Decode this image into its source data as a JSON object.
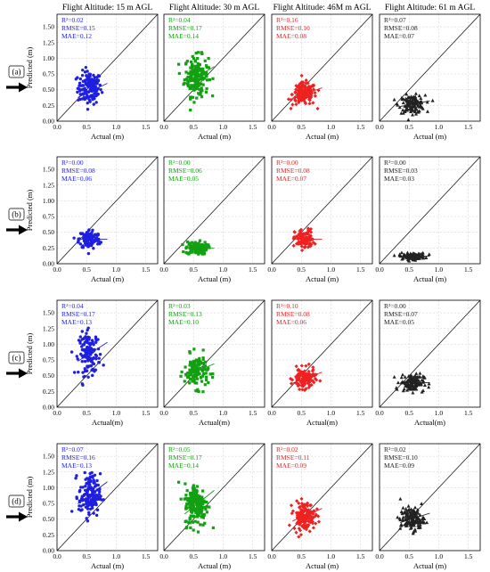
{
  "chart_data": {
    "type": "scatter",
    "column_titles": [
      "Flight Altitude: 15 m AGL",
      "Flight Altitude: 30 m AGL",
      "Flight Altitude: 46M m AGL",
      "Flight Altitude: 61 m AGL"
    ],
    "row_labels": [
      "(a)",
      "(b)",
      "(c)",
      "(d)"
    ],
    "xlabels": [
      "Actual (m)",
      "Actual (m)",
      "Actual(m)",
      "Actual (m)"
    ],
    "ylabel": "Predicted (m)",
    "xlim": [
      0,
      1.7
    ],
    "ylim": [
      0,
      1.7
    ],
    "x_ticks": [
      "0.0",
      "0.5",
      "1.0",
      "1.5"
    ],
    "y_ticks": [
      "0.00",
      "0.25",
      "0.50",
      "0.75",
      "1.00",
      "1.25",
      "1.50"
    ],
    "series_colors": [
      "#1f1fe0",
      "#13a013",
      "#ee2222",
      "#222222"
    ],
    "markers": [
      "circle",
      "square",
      "diamond",
      "triangle"
    ],
    "panels": [
      [
        {
          "stats": [
            "R²=0.02",
            "RMSE=0.15",
            "MAE=0.12"
          ],
          "center": [
            0.55,
            0.53
          ],
          "spread": [
            0.1,
            0.13
          ],
          "n": 140,
          "fit": [
            0.45,
            0.22
          ]
        },
        {
          "stats": [
            "R²=0.04",
            "RMSE=0.17",
            "MAE=0.14"
          ],
          "center": [
            0.55,
            0.72
          ],
          "spread": [
            0.1,
            0.16
          ],
          "n": 170,
          "fit": [
            0.55,
            0.4
          ]
        },
        {
          "stats": [
            "R²=0.16",
            "RMSE=0.10",
            "MAE=0.08"
          ],
          "center": [
            0.55,
            0.43
          ],
          "spread": [
            0.1,
            0.09
          ],
          "n": 150,
          "fit": [
            0.33,
            0.25
          ]
        },
        {
          "stats": [
            "R²=0.07",
            "RMSE=0.08",
            "MAE=0.07"
          ],
          "center": [
            0.55,
            0.27
          ],
          "spread": [
            0.11,
            0.07
          ],
          "n": 130,
          "fit": [
            0.18,
            0.17
          ]
        }
      ],
      [
        {
          "stats": [
            "R²=0.00",
            "RMSE=0.08",
            "MAE=0.06"
          ],
          "center": [
            0.55,
            0.39
          ],
          "spread": [
            0.09,
            0.08
          ],
          "n": 110,
          "fit": [
            0.0,
            0.39
          ]
        },
        {
          "stats": [
            "R²=0.00",
            "RMSE=0.06",
            "MAE=0.05"
          ],
          "center": [
            0.55,
            0.25
          ],
          "spread": [
            0.09,
            0.05
          ],
          "n": 110,
          "fit": [
            0.0,
            0.25
          ]
        },
        {
          "stats": [
            "R²=0.00",
            "RMSE=0.08",
            "MAE=0.07"
          ],
          "center": [
            0.55,
            0.39
          ],
          "spread": [
            0.08,
            0.08
          ],
          "n": 110,
          "fit": [
            0.0,
            0.39
          ]
        },
        {
          "stats": [
            "R²=0.00",
            "RMSE=0.03",
            "MAE=0.03"
          ],
          "center": [
            0.55,
            0.12
          ],
          "spread": [
            0.11,
            0.025
          ],
          "n": 110,
          "fit": [
            0.0,
            0.12
          ]
        }
      ],
      [
        {
          "stats": [
            "R²=0.04",
            "RMSE=0.17",
            "MAE=0.13"
          ],
          "center": [
            0.55,
            0.85
          ],
          "spread": [
            0.09,
            0.17
          ],
          "n": 130,
          "fit": [
            0.6,
            0.52
          ]
        },
        {
          "stats": [
            "R²=0.03",
            "RMSE=0.13",
            "MAE=0.10"
          ],
          "center": [
            0.55,
            0.57
          ],
          "spread": [
            0.1,
            0.13
          ],
          "n": 120,
          "fit": [
            0.4,
            0.35
          ]
        },
        {
          "stats": [
            "R²=0.10",
            "RMSE=0.08",
            "MAE=0.06"
          ],
          "center": [
            0.55,
            0.45
          ],
          "spread": [
            0.09,
            0.08
          ],
          "n": 130,
          "fit": [
            0.35,
            0.26
          ]
        },
        {
          "stats": [
            "R²=0.00",
            "RMSE=0.07",
            "MAE=0.05"
          ],
          "center": [
            0.55,
            0.39
          ],
          "spread": [
            0.1,
            0.07
          ],
          "n": 120,
          "fit": [
            0.0,
            0.39
          ]
        }
      ],
      [
        {
          "stats": [
            "R²=0.07",
            "RMSE=0.16",
            "MAE=0.13"
          ],
          "center": [
            0.55,
            0.88
          ],
          "spread": [
            0.09,
            0.17
          ],
          "n": 150,
          "fit": [
            0.7,
            0.5
          ]
        },
        {
          "stats": [
            "R²=0.05",
            "RMSE=0.17",
            "MAE=0.14"
          ],
          "center": [
            0.55,
            0.73
          ],
          "spread": [
            0.1,
            0.17
          ],
          "n": 170,
          "fit": [
            0.75,
            0.32
          ]
        },
        {
          "stats": [
            "R²=0.02",
            "RMSE=0.11",
            "MAE=0.09"
          ],
          "center": [
            0.55,
            0.55
          ],
          "spread": [
            0.09,
            0.11
          ],
          "n": 150,
          "fit": [
            0.4,
            0.33
          ]
        },
        {
          "stats": [
            "R²=0.02",
            "RMSE=0.10",
            "MAE=0.09"
          ],
          "center": [
            0.55,
            0.5
          ],
          "spread": [
            0.1,
            0.09
          ],
          "n": 140,
          "fit": [
            0.3,
            0.34
          ]
        }
      ]
    ]
  }
}
